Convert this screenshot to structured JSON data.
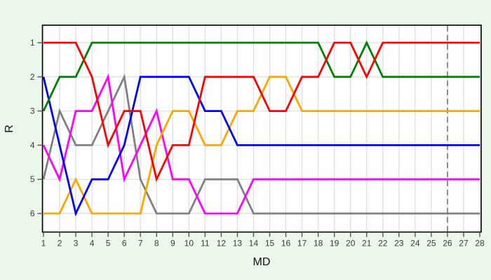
{
  "chart_data": {
    "type": "line",
    "subtype": "bump-rank-chart",
    "title": "",
    "xlabel": "MD",
    "ylabel": "R",
    "x": [
      1,
      2,
      3,
      4,
      5,
      6,
      7,
      8,
      9,
      10,
      11,
      12,
      13,
      14,
      15,
      16,
      17,
      18,
      19,
      20,
      21,
      22,
      23,
      24,
      25,
      26,
      27,
      28
    ],
    "x_tick_labels": [
      "1",
      "2",
      "3",
      "4",
      "5",
      "6",
      "7",
      "8",
      "9",
      "10",
      "11",
      "12",
      "13",
      "14",
      "15",
      "16",
      "17",
      "18",
      "19",
      "20",
      "21",
      "22",
      "23",
      "24",
      "25",
      "26",
      "27",
      "28"
    ],
    "y_ticks": [
      1,
      2,
      3,
      4,
      5,
      6
    ],
    "y_tick_labels": [
      "1",
      "2",
      "3",
      "4",
      "5",
      "6"
    ],
    "y_axis_reversed": true,
    "ylim": [
      1,
      6
    ],
    "grid": true,
    "legend": "none",
    "reference_line": {
      "x": 26,
      "style": "dashed",
      "color": "#8c8c8c"
    },
    "series": [
      {
        "name": "gray",
        "color": "#808080",
        "values": [
          5,
          3,
          4,
          4,
          3,
          2,
          5,
          6,
          6,
          6,
          5,
          5,
          5,
          6,
          6,
          6,
          6,
          6,
          6,
          6,
          6,
          6,
          6,
          6,
          6,
          6,
          6,
          6
        ]
      },
      {
        "name": "magenta",
        "color": "#ff00ff",
        "values": [
          4,
          5,
          3,
          3,
          2,
          5,
          4,
          3,
          5,
          5,
          6,
          6,
          6,
          5,
          5,
          5,
          5,
          5,
          5,
          5,
          5,
          5,
          5,
          5,
          5,
          5,
          5,
          5
        ]
      },
      {
        "name": "orange",
        "color": "#ffa500",
        "values": [
          6,
          6,
          5,
          6,
          6,
          6,
          6,
          4,
          3,
          3,
          4,
          4,
          3,
          3,
          2,
          2,
          3,
          3,
          3,
          3,
          3,
          3,
          3,
          3,
          3,
          3,
          3,
          3
        ]
      },
      {
        "name": "blue",
        "color": "#0000ff",
        "values": [
          2,
          4,
          6,
          5,
          5,
          4,
          2,
          2,
          2,
          2,
          3,
          3,
          4,
          4,
          4,
          4,
          4,
          4,
          4,
          4,
          4,
          4,
          4,
          4,
          4,
          4,
          4,
          4
        ]
      },
      {
        "name": "green",
        "color": "#008000",
        "values": [
          3,
          2,
          2,
          1,
          1,
          1,
          1,
          1,
          1,
          1,
          1,
          1,
          1,
          1,
          1,
          1,
          1,
          1,
          2,
          2,
          1,
          2,
          2,
          2,
          2,
          2,
          2,
          2
        ]
      },
      {
        "name": "red",
        "color": "#ff0000",
        "values": [
          1,
          1,
          1,
          2,
          4,
          3,
          3,
          5,
          4,
          4,
          2,
          2,
          2,
          2,
          3,
          3,
          2,
          2,
          1,
          1,
          2,
          1,
          1,
          1,
          1,
          1,
          1,
          1
        ]
      }
    ]
  },
  "style": {
    "page_background": "#eaf7ea",
    "plot_background": "#ffffff",
    "grid_color": "#e0e0e0",
    "axis_color": "#000000",
    "tick_color": "#555555",
    "tick_label_color": "#3a3a3a",
    "axis_title_color": "#111111"
  }
}
